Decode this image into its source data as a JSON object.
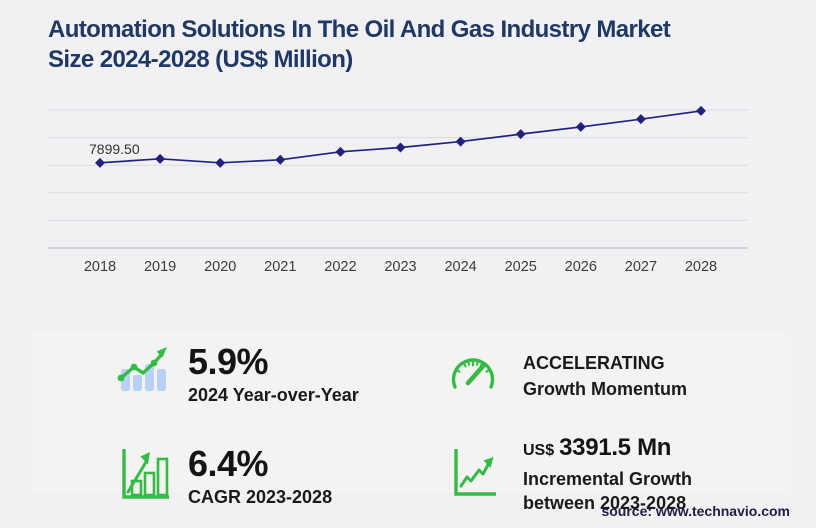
{
  "title_lines": [
    "Automation Solutions In The Oil And Gas Industry Market",
    "Size 2024-2028 (US$ Million)"
  ],
  "chart_data": {
    "type": "line",
    "title": "Automation Solutions In The Oil And Gas Industry Market Size 2024-2028 (US$ Million)",
    "xlabel": "",
    "ylabel": "",
    "x": [
      "2018",
      "2019",
      "2020",
      "2021",
      "2022",
      "2023",
      "2024",
      "2025",
      "2026",
      "2027",
      "2028"
    ],
    "series": [
      {
        "name": "Market size (US$ Million)",
        "values": [
          7899.5,
          8270,
          7900,
          8180,
          8920,
          9322,
          9872,
          10560,
          11230,
          11950,
          12713.5
        ]
      }
    ],
    "data_label": {
      "x_index": 0,
      "text": "7899.50"
    },
    "ylim": [
      0,
      12800
    ],
    "gridline_count": 6,
    "grid": true,
    "legend": "none",
    "line_color": "#22227e",
    "marker": "diamond"
  },
  "stats": {
    "yoy": {
      "value": "5.9%",
      "label": "2024 Year-over-Year",
      "icon": "bars-trend-up-icon"
    },
    "momentum": {
      "status": "ACCELERATING",
      "label": "Growth Momentum",
      "icon": "speedometer-icon"
    },
    "cagr": {
      "value": "6.4%",
      "label": "CAGR 2023-2028",
      "icon": "growth-chart-bars-icon"
    },
    "incremental": {
      "currency": "US$",
      "value": "3391.5 Mn",
      "label_line1": "Incremental Growth",
      "label_line2": "between 2023-2028",
      "icon": "rising-arrow-chart-icon"
    }
  },
  "source": "source: www.technavio.com",
  "colors": {
    "title_navy": "#1f3864",
    "line_indigo": "#22227e",
    "accent_green": "#35ba46",
    "bar_blue": "#b8d1f4"
  }
}
